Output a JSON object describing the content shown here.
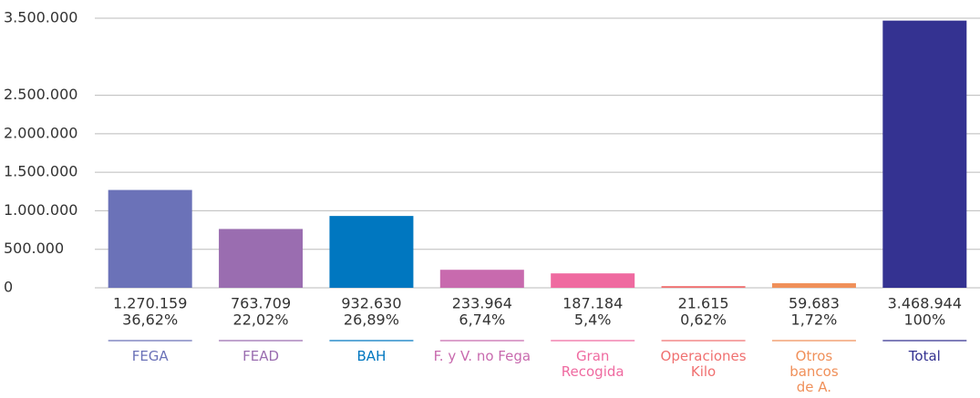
{
  "chart_data": {
    "type": "bar",
    "categories": [
      "FEGA",
      "FEAD",
      "BAH",
      "F. y V. no Fega",
      "Gran Recogida",
      "Operaciones Kilo",
      "Otros bancos de A.",
      "Total"
    ],
    "values": [
      1270159,
      763709,
      932630,
      233964,
      187184,
      21615,
      59683,
      3468944
    ],
    "value_labels": [
      "1.270.159",
      "763.709",
      "932.630",
      "233.964",
      "187.184",
      "21.615",
      "59.683",
      "3.468.944"
    ],
    "shares": [
      36.62,
      22.02,
      26.89,
      6.74,
      5.4,
      0.62,
      1.72,
      100
    ],
    "share_labels": [
      "36,62%",
      "22,02%",
      "26,89%",
      "6,74%",
      "5,4%",
      "0,62%",
      "1,72%",
      "100%"
    ],
    "colors": [
      "#6b72b8",
      "#9a6db0",
      "#0077c0",
      "#c86aae",
      "#ef6aa0",
      "#f07070",
      "#f0905a",
      "#343291"
    ],
    "ylim": [
      0,
      3500000
    ],
    "yticks": [
      0,
      {
        "value": 500000,
        "label": "500.000"
      },
      {
        "value": 1000000,
        "label": "1.000.000"
      },
      {
        "value": 1500000,
        "label": "1.500.000"
      },
      {
        "value": 2000000,
        "label": "2.000.000"
      },
      {
        "value": 2500000,
        "label": "2.500.000"
      },
      {
        "value": 3500000,
        "label": "3.500.000"
      }
    ],
    "grid": true
  }
}
